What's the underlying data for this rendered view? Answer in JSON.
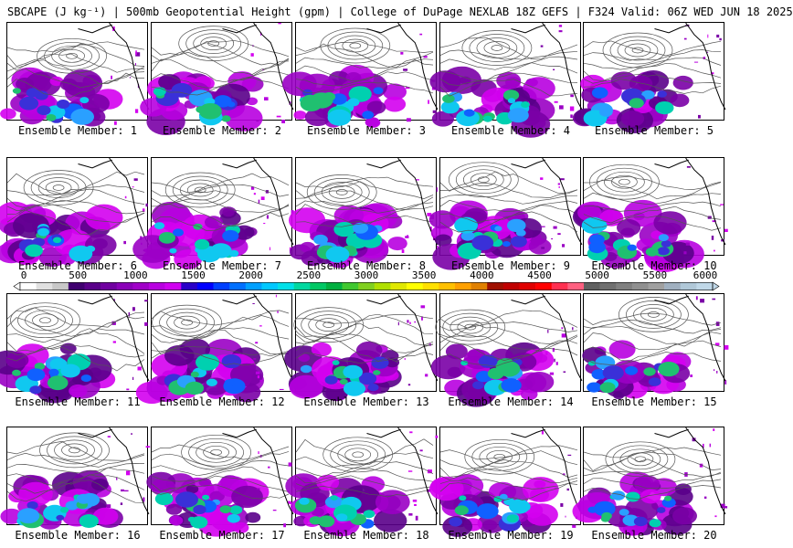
{
  "title": "SBCAPE (J kg⁻¹) | 500mb Geopotential Height (gpm) | College of DuPage NEXLAB 18Z GEFS | F324 Valid: 06Z WED JUN 18 2025",
  "panels": [
    {
      "label": "Ensemble Member: 1"
    },
    {
      "label": "Ensemble Member: 2"
    },
    {
      "label": "Ensemble Member: 3"
    },
    {
      "label": "Ensemble Member: 4"
    },
    {
      "label": "Ensemble Member: 5"
    },
    {
      "label": "Ensemble Member: 6"
    },
    {
      "label": "Ensemble Member: 7"
    },
    {
      "label": "Ensemble Member: 8"
    },
    {
      "label": "Ensemble Member: 9"
    },
    {
      "label": "Ensemble Member: 10"
    },
    {
      "label": "Ensemble Member: 11"
    },
    {
      "label": "Ensemble Member: 12"
    },
    {
      "label": "Ensemble Member: 13"
    },
    {
      "label": "Ensemble Member: 14"
    },
    {
      "label": "Ensemble Member: 15"
    },
    {
      "label": "Ensemble Member: 16"
    },
    {
      "label": "Ensemble Member: 17"
    },
    {
      "label": "Ensemble Member: 18"
    },
    {
      "label": "Ensemble Member: 19"
    },
    {
      "label": "Ensemble Member: 20"
    }
  ],
  "colorbar": {
    "ticks": [
      "0",
      "500",
      "1000",
      "1500",
      "2000",
      "2500",
      "3000",
      "3500",
      "4000",
      "4500",
      "5000",
      "5500",
      "6000"
    ],
    "colors": [
      "#ffffff",
      "#e0e0e0",
      "#c8c8c8",
      "#400070",
      "#5a008a",
      "#7000a0",
      "#8a00b8",
      "#a000c8",
      "#b800e0",
      "#d000f0",
      "#2a00c8",
      "#0000ff",
      "#0040ff",
      "#0070ff",
      "#00a0ff",
      "#00c8ff",
      "#00e0e8",
      "#00d8a0",
      "#00c864",
      "#00b040",
      "#40c830",
      "#80d020",
      "#b0e000",
      "#e0e800",
      "#ffff00",
      "#ffe000",
      "#ffc000",
      "#ffa000",
      "#e08000",
      "#a01000",
      "#c00000",
      "#e00000",
      "#ff0000",
      "#ff3050",
      "#ff6080",
      "#606060",
      "#707070",
      "#808080",
      "#909090",
      "#a0a0a0",
      "#a0b0c0",
      "#b0c8d8",
      "#c0d8e8"
    ]
  }
}
